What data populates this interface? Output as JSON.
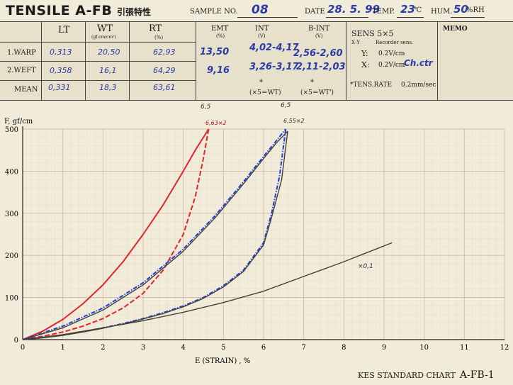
{
  "header": {
    "brand": "TENSILE A-FB",
    "brand_jp": "引張特性",
    "sample_label": "SAMPLE NO.",
    "sample_value": "08",
    "date_label": "DATE",
    "date_value": "28. 5. 99",
    "temp_label": "TEMP.",
    "temp_value": "23",
    "temp_unit": "℃",
    "hum_label": "HUM.",
    "hum_value": "50",
    "hum_unit": "%RH"
  },
  "table": {
    "col_lt": "LT",
    "col_wt": "WT",
    "col_wt_unit": "(gf.cm/cm²)",
    "col_rt": "RT",
    "col_rt_unit": "(%)",
    "col_emt": "EMT",
    "col_emt_unit": "(%)",
    "col_int": "INT",
    "col_int_unit": "(V)",
    "col_bint": "B-INT",
    "col_bint_unit": "(V)",
    "row_warp": "1.WARP",
    "row_weft": "2.WEFT",
    "row_mean": "MEAN",
    "warp": {
      "lt": "0,313",
      "wt": "20,50",
      "rt": "62,93",
      "emt": "13,50",
      "int": "4,02-4,17",
      "bint": "2,56-2,60"
    },
    "weft": {
      "lt": "0,358",
      "wt": "16,1",
      "rt": "64,29",
      "emt": "9,16",
      "int": "3,26-3,17",
      "bint": "2,11-2,03"
    },
    "mean": {
      "lt": "0,331",
      "wt": "18,3",
      "rt": "63,61"
    },
    "int_note": "(×5＝WT)",
    "bint_note": "(×5＝WT')",
    "star": "*"
  },
  "sens": {
    "title": "SENS 5×5",
    "xy": "X·Y",
    "recorder": "Recorder sens.",
    "y_label": "Y:",
    "y_val": "0.2V/cm",
    "x_label": "X:",
    "x_val": "0.2V/cm",
    "x_note": "Ch.ctr",
    "rate_label": "*TENS.RATE",
    "rate_val": "0.2mm/sec",
    "memo": "MEMO"
  },
  "footer": {
    "text": "KES STANDARD CHART",
    "code": "A-FB-1"
  },
  "chart_data": {
    "type": "line",
    "title": "",
    "xlabel": "E (STRAIN) , %",
    "ylabel": "F, gf/cm",
    "xlim": [
      0,
      12
    ],
    "ylim": [
      0,
      500
    ],
    "x_ticks": [
      "0",
      "1",
      "2",
      "3",
      "4",
      "5",
      "6",
      "7",
      "8",
      "9",
      "10",
      "11",
      "12"
    ],
    "y_ticks": [
      "0",
      "100",
      "200",
      "300",
      "400",
      "500"
    ],
    "grid": true,
    "colors": {
      "red": "#e0262c",
      "blue": "#1f3fd8",
      "black": "#444038"
    },
    "annotations": {
      "a1": "6,5",
      "a2": "6,5",
      "a3": "6,63×2",
      "a4": "6,55×2",
      "a5": "×0,1"
    },
    "series": [
      {
        "color": "red",
        "style": "solid",
        "x": [
          0,
          0.5,
          1.0,
          1.5,
          2.0,
          2.5,
          3.0,
          3.5,
          4.0,
          4.3,
          4.5,
          4.63
        ],
        "y": [
          0,
          20,
          48,
          85,
          130,
          185,
          250,
          320,
          400,
          450,
          480,
          500
        ]
      },
      {
        "color": "red",
        "style": "dash",
        "x": [
          4.63,
          4.5,
          4.3,
          4.0,
          3.5,
          3.0,
          2.5,
          2.0,
          1.5,
          1.0,
          0.5,
          0
        ],
        "y": [
          500,
          430,
          340,
          250,
          165,
          110,
          75,
          50,
          32,
          18,
          8,
          0
        ]
      },
      {
        "color": "blue",
        "style": "dashdot",
        "x": [
          0,
          1.0,
          2.0,
          3.0,
          4.0,
          4.8,
          5.5,
          6.0,
          6.3,
          6.55
        ],
        "y": [
          0,
          32,
          75,
          135,
          215,
          295,
          375,
          435,
          470,
          500
        ]
      },
      {
        "color": "blue",
        "style": "dashdot",
        "x": [
          6.55,
          6.4,
          6.2,
          6.0,
          5.5,
          5.0,
          4.5,
          4.0,
          3.5,
          3.0,
          2.5,
          2.0,
          1.5,
          1.0,
          0.5,
          0
        ],
        "y": [
          500,
          390,
          300,
          230,
          165,
          128,
          100,
          80,
          64,
          50,
          38,
          28,
          19,
          11,
          5,
          0
        ]
      },
      {
        "color": "black",
        "style": "solid",
        "x": [
          0,
          1.0,
          2.0,
          3.0,
          4.0,
          4.8,
          5.5,
          6.0,
          6.3,
          6.6
        ],
        "y": [
          0,
          28,
          70,
          130,
          210,
          290,
          370,
          430,
          465,
          495
        ]
      },
      {
        "color": "black",
        "style": "solid",
        "x": [
          6.6,
          6.45,
          6.2,
          6.0,
          5.5,
          5.0,
          4.5,
          4.0,
          3.5,
          3.0,
          2.5,
          2.0,
          1.5,
          1.0,
          0.5,
          0
        ],
        "y": [
          495,
          380,
          290,
          225,
          162,
          125,
          98,
          78,
          62,
          49,
          37,
          27,
          18,
          10,
          4,
          0
        ]
      },
      {
        "color": "black",
        "style": "solid",
        "x": [
          0,
          1,
          2,
          3,
          4,
          5,
          6,
          7,
          8,
          9.2
        ],
        "y": [
          0,
          12,
          28,
          45,
          65,
          88,
          115,
          150,
          185,
          230
        ]
      }
    ]
  }
}
